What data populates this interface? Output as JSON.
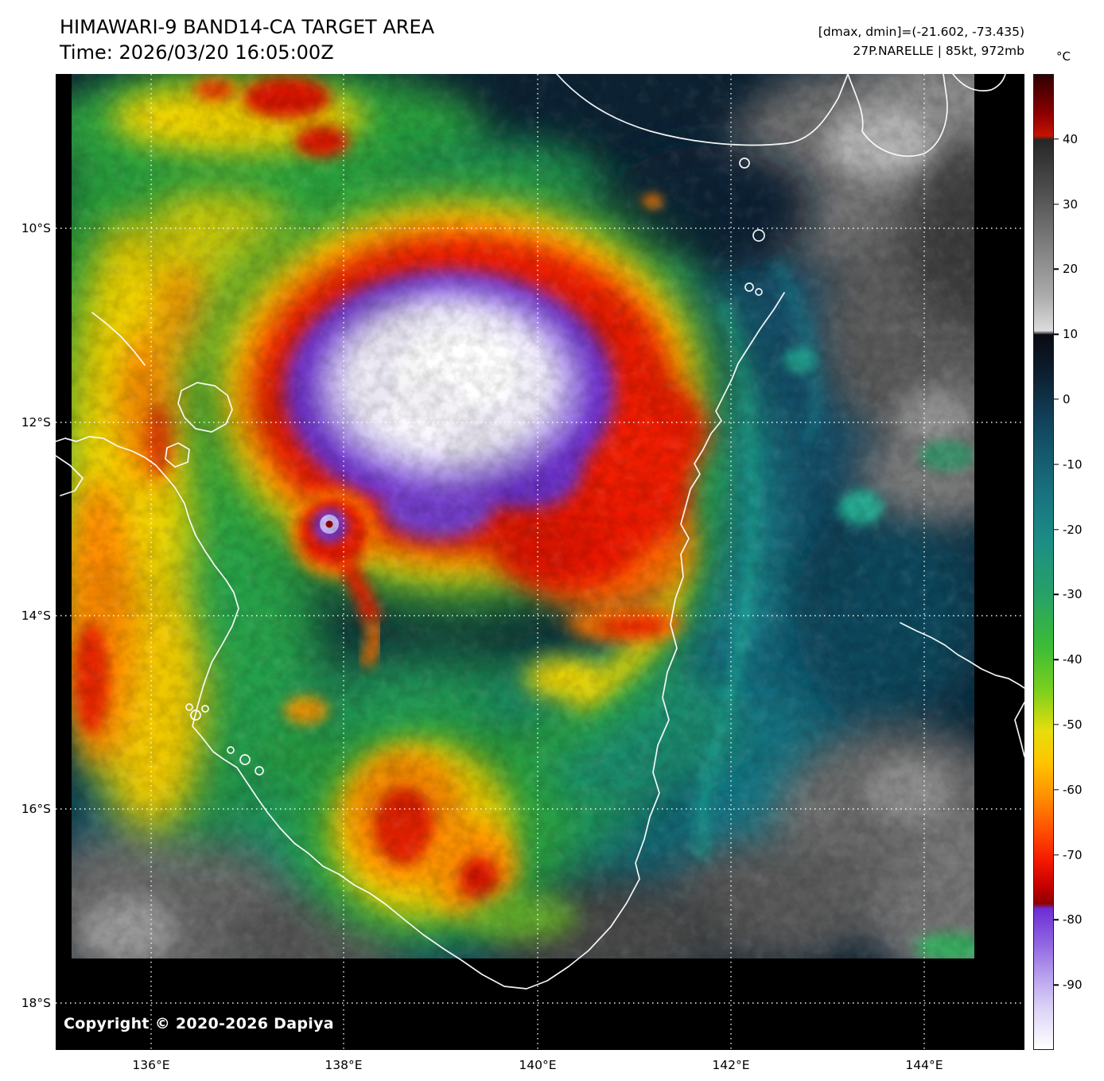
{
  "header": {
    "title": "HIMAWARI-9 BAND14-CA TARGET AREA",
    "time_label": "Time: 2026/03/20 16:05:00Z",
    "dmax_dmin": "[dmax, dmin]=(-21.602, -73.435)",
    "storm_info": "27P.NARELLE | 85kt, 972mb"
  },
  "map": {
    "lat_labels": [
      "10°S",
      "12°S",
      "14°S",
      "16°S",
      "18°S"
    ],
    "lon_labels": [
      "136°E",
      "138°E",
      "140°E",
      "142°E",
      "144°E"
    ],
    "copyright": "Copyright © 2020-2026 Dapiya"
  },
  "colorbar": {
    "unit": "°C",
    "tick_labels": [
      "40",
      "30",
      "20",
      "10",
      "0",
      "-10",
      "-20",
      "-30",
      "-40",
      "-50",
      "-60",
      "-70",
      "-80",
      "-90"
    ],
    "palette": [
      [
        50,
        "#300000"
      ],
      [
        44,
        "#8c0000"
      ],
      [
        40.6,
        "#c41400"
      ],
      [
        40,
        "#262626"
      ],
      [
        32,
        "#4f4f4f"
      ],
      [
        24,
        "#7d7d7d"
      ],
      [
        16,
        "#ababab"
      ],
      [
        10.6,
        "#dcdcdc"
      ],
      [
        10,
        "#0a0a12"
      ],
      [
        4,
        "#0d1f30"
      ],
      [
        -4,
        "#11465e"
      ],
      [
        -14,
        "#18707f"
      ],
      [
        -22,
        "#1d8e85"
      ],
      [
        -30,
        "#27a167"
      ],
      [
        -38,
        "#3cbc36"
      ],
      [
        -45,
        "#7ed01c"
      ],
      [
        -51,
        "#e6de0c"
      ],
      [
        -56,
        "#ffc400"
      ],
      [
        -61,
        "#ff9000"
      ],
      [
        -66,
        "#ff5400"
      ],
      [
        -71,
        "#f51800"
      ],
      [
        -75,
        "#c40000"
      ],
      [
        -77.6,
        "#8e0000"
      ],
      [
        -78.4,
        "#6c2ed6"
      ],
      [
        -84,
        "#9268e2"
      ],
      [
        -89,
        "#b9a3ee"
      ],
      [
        -94,
        "#ded5f7"
      ],
      [
        -100,
        "#ffffff"
      ]
    ]
  }
}
